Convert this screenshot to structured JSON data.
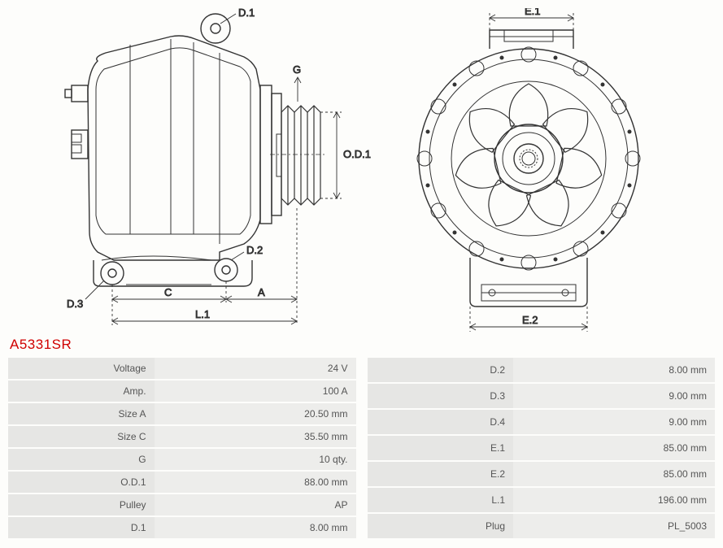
{
  "partNumber": "A5331SR",
  "diagram": {
    "labels": {
      "D1": "D.1",
      "D2": "D.2",
      "D3": "D.3",
      "G": "G",
      "OD1": "O.D.1",
      "C": "C",
      "A": "A",
      "L1": "L.1",
      "E1": "E.1",
      "E2": "E.2"
    },
    "stroke": "#333333",
    "strokeWidth": 1.4,
    "dimStroke": "#333333",
    "dimDash": "3,3"
  },
  "specsLeft": [
    {
      "label": "Voltage",
      "value": "24 V"
    },
    {
      "label": "Amp.",
      "value": "100 A"
    },
    {
      "label": "Size A",
      "value": "20.50 mm"
    },
    {
      "label": "Size C",
      "value": "35.50 mm"
    },
    {
      "label": "G",
      "value": "10 qty."
    },
    {
      "label": "O.D.1",
      "value": "88.00 mm"
    },
    {
      "label": "Pulley",
      "value": "AP"
    },
    {
      "label": "D.1",
      "value": "8.00 mm"
    }
  ],
  "specsRight": [
    {
      "label": "D.2",
      "value": "8.00 mm"
    },
    {
      "label": "D.3",
      "value": "9.00 mm"
    },
    {
      "label": "D.4",
      "value": "9.00 mm"
    },
    {
      "label": "E.1",
      "value": "85.00 mm"
    },
    {
      "label": "E.2",
      "value": "85.00 mm"
    },
    {
      "label": "L.1",
      "value": "196.00 mm"
    },
    {
      "label": "Plug",
      "value": "PL_5003"
    }
  ]
}
